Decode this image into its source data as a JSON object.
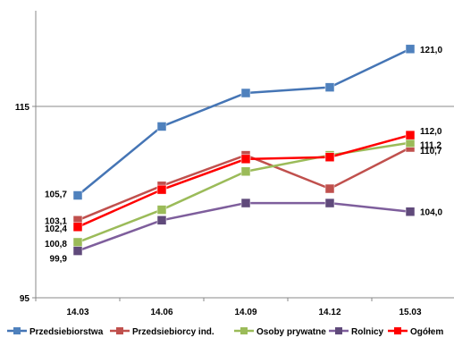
{
  "chart_data": {
    "type": "line",
    "categories": [
      "14.03",
      "14.06",
      "14.09",
      "14.12",
      "15.03"
    ],
    "ylim": [
      95,
      125
    ],
    "yticks": [
      "95",
      "115"
    ],
    "grid": "horizontal line at 115",
    "legend_position": "bottom",
    "series": [
      {
        "name": "Przedsiebiorstwa",
        "color": "#4575B5",
        "marker": "#4F81BD",
        "values": [
          105.7,
          112.9,
          116.4,
          117.0,
          121.0
        ],
        "labels": {
          "0": "105,7",
          "4": "121,0"
        }
      },
      {
        "name": "Przedsiebiorcy ind.",
        "color": "#C0504D",
        "marker": "#C0504D",
        "values": [
          103.1,
          106.7,
          109.9,
          106.4,
          110.7
        ],
        "labels": {
          "0": "103,1",
          "4": "110,7"
        }
      },
      {
        "name": "Osoby prywatne",
        "color": "#9BBB59",
        "marker": "#9BBB59",
        "values": [
          100.8,
          104.2,
          108.2,
          109.9,
          111.2
        ],
        "labels": {
          "0": "100,8",
          "4": "111,2"
        }
      },
      {
        "name": "Rolnicy",
        "color": "#7E5E9C",
        "marker": "#604A7B",
        "values": [
          99.9,
          103.1,
          104.9,
          104.9,
          104.0
        ],
        "labels": {
          "0": "99,9",
          "4": "104,0"
        }
      },
      {
        "name": "Ogółem",
        "color": "#FF0000",
        "marker": "#FF0000",
        "values": [
          102.4,
          106.3,
          109.5,
          109.7,
          112.0
        ],
        "labels": {
          "0": "102,4",
          "4": "112,0"
        }
      }
    ]
  }
}
